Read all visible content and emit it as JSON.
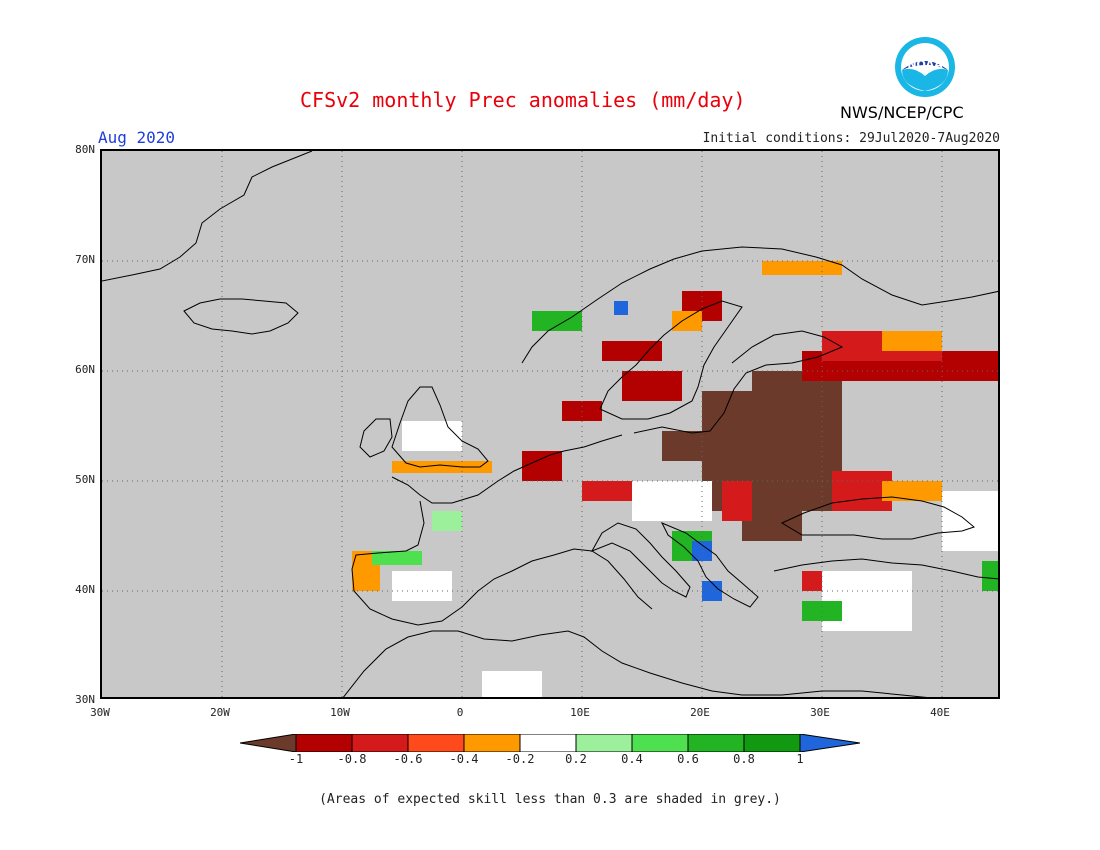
{
  "title": "CFSv2 monthly Prec anomalies (mm/day)",
  "month": "Aug 2020",
  "initial_conditions": "Initial conditions: 29Jul2020-7Aug2020",
  "agency": "NWS/NCEP/CPC",
  "logo_text": "NOAA",
  "footnote": "(Areas of expected skill less than 0.3 are shaded in grey.)",
  "lat_labels": [
    "80N",
    "70N",
    "60N",
    "50N",
    "40N",
    "30N"
  ],
  "lon_labels": [
    "30W",
    "20W",
    "10W",
    "0",
    "10E",
    "20E",
    "30E",
    "40E"
  ],
  "colorbar": {
    "labels": [
      "-1",
      "-0.8",
      "-0.6",
      "-0.4",
      "-0.2",
      "0.2",
      "0.4",
      "0.6",
      "0.8",
      "1"
    ],
    "colors": [
      "#6b3a2a",
      "#b30000",
      "#d41a1a",
      "#ff4a1c",
      "#ff9900",
      "#ffffff",
      "#9cf09c",
      "#4fe04f",
      "#22b422",
      "#119a11",
      "#1f66dd"
    ]
  },
  "colors": {
    "no_skill": "#c8c8c8",
    "title": "#e8000b",
    "month": "#1f3fd8"
  }
}
